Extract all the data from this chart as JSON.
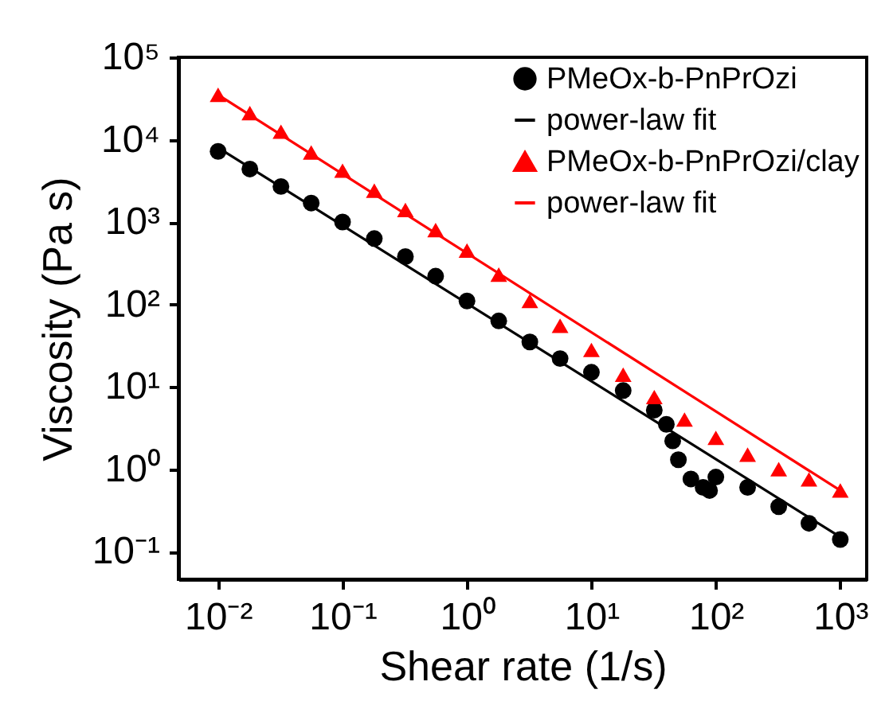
{
  "chart_data": {
    "type": "scatter",
    "xlabel": "Shear rate (1/s)",
    "ylabel": "Viscosity (Pa s)",
    "log": "xy",
    "grid": false,
    "legend": "top right",
    "xlim": [
      0.0048,
      1630
    ],
    "ylim": [
      0.046,
      100000
    ],
    "xticks": [
      {
        "value": 0.01,
        "label": "10⁻²"
      },
      {
        "value": 0.1,
        "label": "10⁻¹"
      },
      {
        "value": 1,
        "label": "10⁰"
      },
      {
        "value": 10,
        "label": "10¹"
      },
      {
        "value": 100,
        "label": "10²"
      },
      {
        "value": 1000,
        "label": "10³"
      }
    ],
    "yticks": [
      {
        "value": 0.1,
        "label": "10⁻¹"
      },
      {
        "value": 1,
        "label": "10⁰"
      },
      {
        "value": 10,
        "label": "10¹"
      },
      {
        "value": 100,
        "label": "10²"
      },
      {
        "value": 1000,
        "label": "10³"
      },
      {
        "value": 10000,
        "label": "10⁴"
      },
      {
        "value": 100000,
        "label": "10⁵"
      }
    ],
    "series": [
      {
        "name": "PMeOx-b-PnPrOzi",
        "marker": "circle",
        "color": "#000000",
        "x": [
          0.01,
          0.018,
          0.032,
          0.056,
          0.1,
          0.18,
          0.32,
          0.56,
          1,
          1.8,
          3.2,
          5.6,
          10,
          18,
          32,
          40,
          45,
          50,
          63,
          79,
          89,
          100,
          180,
          320,
          560,
          1000
        ],
        "values": [
          7200,
          4400,
          2700,
          1700,
          1000,
          630,
          380,
          220,
          110,
          63,
          35,
          22,
          15,
          9,
          5.2,
          3.5,
          2.2,
          1.3,
          0.76,
          0.6,
          0.55,
          0.8,
          0.6,
          0.35,
          0.22,
          0.14
        ]
      },
      {
        "name": "power-law fit",
        "type": "line",
        "marker": "none",
        "line_style": "solid",
        "color": "#000000",
        "x": [
          0.01,
          1000
        ],
        "values": [
          8000,
          0.15
        ]
      },
      {
        "name": "PMeOx-b-PnPrOzi/clay",
        "marker": "triangle",
        "color": "#ff0000",
        "x": [
          0.01,
          0.018,
          0.032,
          0.056,
          0.1,
          0.18,
          0.32,
          0.56,
          1,
          1.8,
          3.2,
          5.6,
          10,
          18,
          32,
          56,
          100,
          180,
          320,
          560,
          1000
        ],
        "values": [
          35000,
          21000,
          12500,
          7000,
          4200,
          2400,
          1400,
          800,
          450,
          230,
          110,
          55,
          28,
          14,
          7.5,
          4,
          2.4,
          1.5,
          1,
          0.75,
          0.55
        ]
      },
      {
        "name": "power-law fit",
        "type": "line",
        "marker": "none",
        "line_style": "solid",
        "color": "#ff0000",
        "x": [
          0.01,
          1000
        ],
        "values": [
          35000,
          0.55
        ]
      }
    ]
  }
}
